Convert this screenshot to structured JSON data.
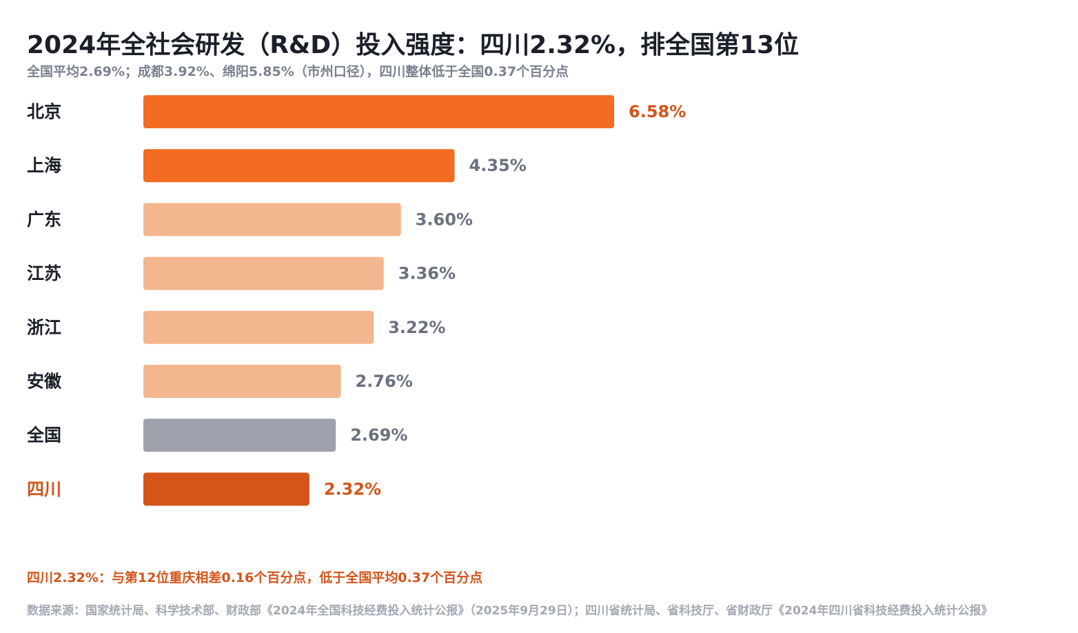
{
  "title": "2024年全社会研发（R&D）投入强度：四川2.32%，排全国第13位",
  "subtitle": "全国平均2.69%；成都3.92%、绵阳5.85%（市州口径），四川整体低于全国0.37个百分点",
  "chart_data": {
    "type": "bar",
    "orientation": "horizontal",
    "categories": [
      "北京",
      "上海",
      "广东",
      "江苏",
      "浙江",
      "安徽",
      "全国",
      "四川"
    ],
    "value_labels": [
      "6.58%",
      "4.35%",
      "3.60%",
      "3.36%",
      "3.22%",
      "2.76%",
      "2.69%",
      "2.32%"
    ],
    "values": [
      6.58,
      4.35,
      3.6,
      3.36,
      3.22,
      2.76,
      2.69,
      2.32
    ],
    "xlim": [
      0,
      6.58
    ],
    "grid": false,
    "bar_colors": [
      "#f26c23",
      "#f26c23",
      "#f3b68e",
      "#f3b68e",
      "#f3b68e",
      "#f3b68e",
      "#9ea1ab",
      "#d4541a"
    ],
    "category_label_colors": [
      "#1b1f2a",
      "#1b1f2a",
      "#1b1f2a",
      "#1b1f2a",
      "#1b1f2a",
      "#1b1f2a",
      "#1b1f2a",
      "#d4541a"
    ],
    "value_label_colors": [
      "#d4541a",
      "#6b7180",
      "#6b7180",
      "#6b7180",
      "#6b7180",
      "#6b7180",
      "#6b7180",
      "#d4541a"
    ]
  },
  "note": "四川2.32%：与第12位重庆相差0.16个百分点，低于全国平均0.37个百分点",
  "source": "数据来源：国家统计局、科学技术部、财政部《2024年全国科技经费投入统计公报》（2025年9月29日）；四川省统计局、省科技厅、省财政厅《2024年四川省科技经费投入统计公报》",
  "colors": {
    "accent": "#f26c23",
    "highlight": "#d4541a",
    "muted_bar": "#f3b68e",
    "national_bar": "#9ea1ab",
    "title_text": "#1b1f2a",
    "secondary_text": "#7a8190"
  }
}
